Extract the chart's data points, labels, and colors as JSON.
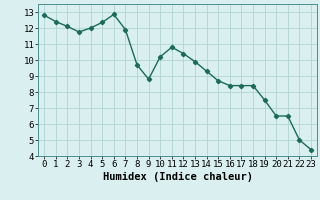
{
  "x": [
    0,
    1,
    2,
    3,
    4,
    5,
    6,
    7,
    8,
    9,
    10,
    11,
    12,
    13,
    14,
    15,
    16,
    17,
    18,
    19,
    20,
    21,
    22,
    23
  ],
  "y": [
    12.8,
    12.4,
    12.1,
    11.75,
    12.0,
    12.35,
    12.85,
    11.9,
    9.7,
    8.8,
    10.2,
    10.8,
    10.4,
    9.9,
    9.3,
    8.7,
    8.4,
    8.4,
    8.4,
    7.5,
    6.5,
    6.5,
    5.0,
    4.4
  ],
  "line_color": "#1a6b5a",
  "marker": "D",
  "markersize": 2.2,
  "linewidth": 1.0,
  "bg_color": "#daf0f0",
  "grid_color": "#b0d4d4",
  "xlabel": "Humidex (Indice chaleur)",
  "xlabel_fontsize": 7.5,
  "tick_fontsize": 6.5,
  "ylim": [
    4,
    13.5
  ],
  "xlim": [
    -0.5,
    23.5
  ],
  "yticks": [
    4,
    5,
    6,
    7,
    8,
    9,
    10,
    11,
    12,
    13
  ],
  "xticks": [
    0,
    1,
    2,
    3,
    4,
    5,
    6,
    7,
    8,
    9,
    10,
    11,
    12,
    13,
    14,
    15,
    16,
    17,
    18,
    19,
    20,
    21,
    22,
    23
  ]
}
